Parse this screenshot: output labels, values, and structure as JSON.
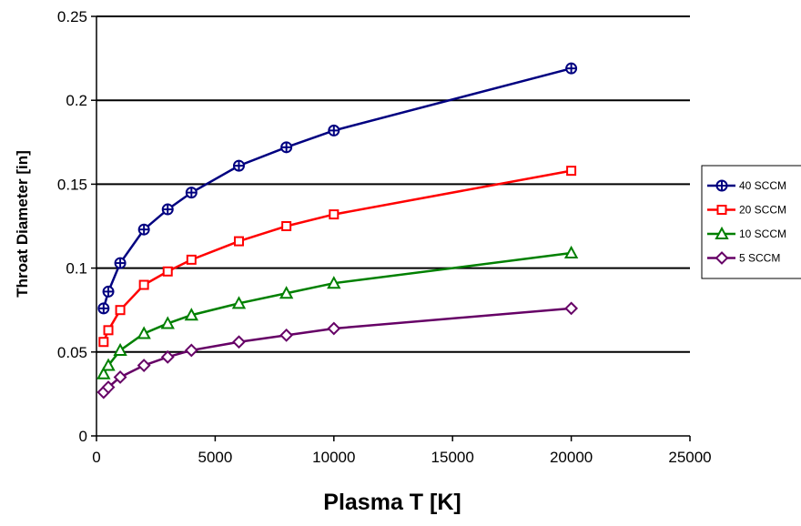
{
  "chart_data": {
    "type": "line",
    "title": "",
    "xlabel": "Plasma T [K]",
    "ylabel": "Throat Diameter [in]",
    "xlim": [
      0,
      25000
    ],
    "ylim": [
      0,
      0.25
    ],
    "xticks": [
      0,
      5000,
      10000,
      15000,
      20000,
      25000
    ],
    "yticks": [
      0,
      0.05,
      0.1,
      0.15,
      0.2,
      0.25
    ],
    "xtick_labels": [
      "0",
      "5000",
      "10000",
      "15000",
      "20000",
      "25000"
    ],
    "ytick_labels": [
      "0",
      "0.05",
      "0.1",
      "0.15",
      "0.2",
      "0.25"
    ],
    "grid": "horizontal",
    "legend_position": "right",
    "x": [
      300,
      500,
      1000,
      2000,
      3000,
      4000,
      6000,
      8000,
      10000,
      20000
    ],
    "series": [
      {
        "name": "40 SCCM",
        "color": "#000080",
        "marker": "circle-plus",
        "values": [
          0.076,
          0.086,
          0.103,
          0.123,
          0.135,
          0.145,
          0.161,
          0.172,
          0.182,
          0.219
        ]
      },
      {
        "name": "20 SCCM",
        "color": "#ff0000",
        "marker": "square",
        "values": [
          0.056,
          0.063,
          0.075,
          0.09,
          0.098,
          0.105,
          0.116,
          0.125,
          0.132,
          0.158
        ]
      },
      {
        "name": "10 SCCM",
        "color": "#008000",
        "marker": "triangle",
        "values": [
          0.037,
          0.042,
          0.051,
          0.061,
          0.067,
          0.072,
          0.079,
          0.085,
          0.091,
          0.109
        ]
      },
      {
        "name": "5 SCCM",
        "color": "#660066",
        "marker": "diamond",
        "values": [
          0.026,
          0.029,
          0.035,
          0.042,
          0.047,
          0.051,
          0.056,
          0.06,
          0.064,
          0.076
        ]
      }
    ]
  }
}
